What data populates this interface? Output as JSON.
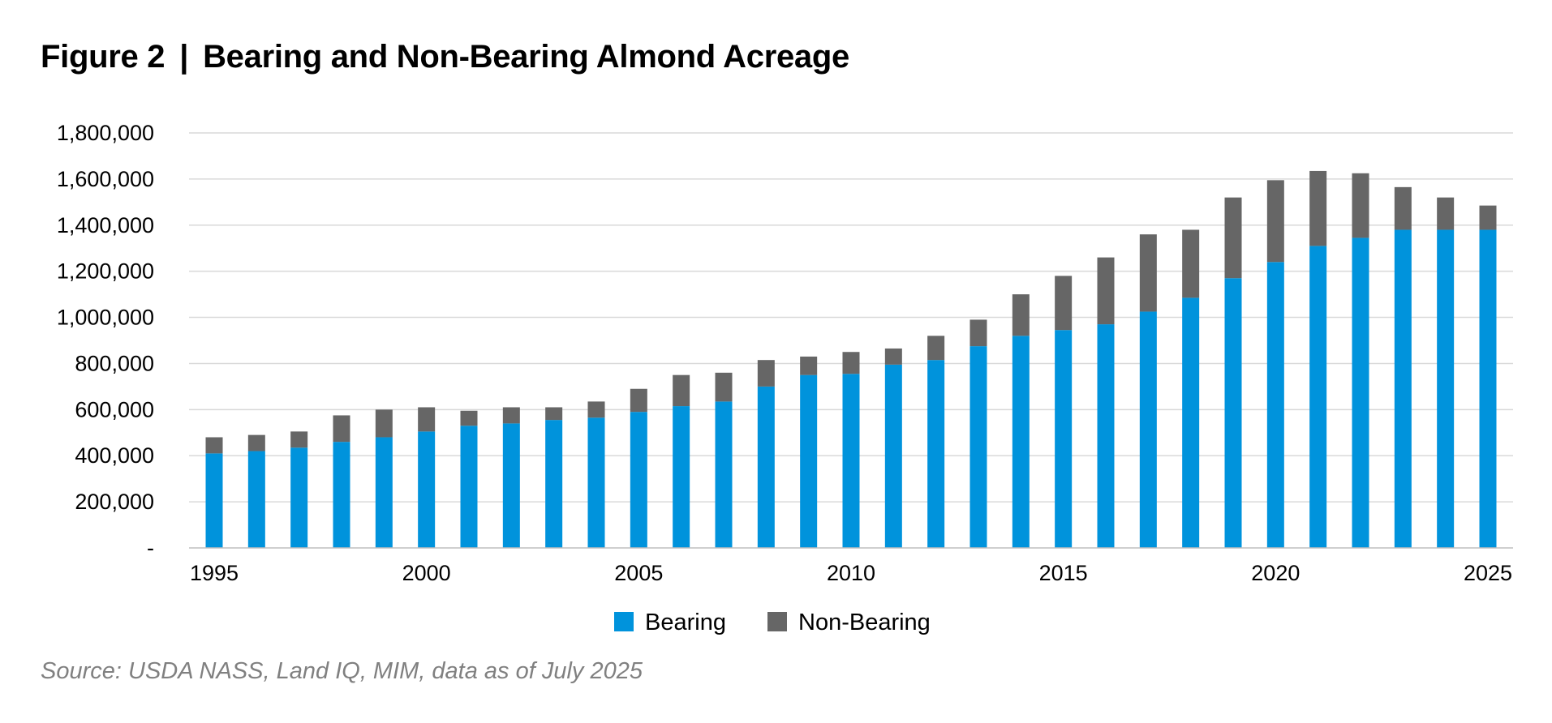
{
  "figure": {
    "label": "Figure 2",
    "separator": "|",
    "title": "Bearing and Non-Bearing Almond Acreage",
    "source": "Source: USDA NASS, Land IQ, MIM, data as of July 2025"
  },
  "colors": {
    "bearing": "#0093dc",
    "non_bearing": "#666666",
    "grid": "#d9d9d9",
    "axis": "#bfbfbf"
  },
  "chart_data": {
    "type": "bar",
    "stacked": true,
    "title": "Bearing and Non-Bearing Almond Acreage",
    "xlabel": "",
    "ylabel": "",
    "ylim": [
      0,
      1800000
    ],
    "yticks": [
      0,
      200000,
      400000,
      600000,
      800000,
      1000000,
      1200000,
      1400000,
      1600000,
      1800000
    ],
    "ytick_labels": [
      "-",
      "200,000",
      "400,000",
      "600,000",
      "800,000",
      "1,000,000",
      "1,200,000",
      "1,400,000",
      "1,600,000",
      "1,800,000"
    ],
    "categories": [
      1995,
      1996,
      1997,
      1998,
      1999,
      2000,
      2001,
      2002,
      2003,
      2004,
      2005,
      2006,
      2007,
      2008,
      2009,
      2010,
      2011,
      2012,
      2013,
      2014,
      2015,
      2016,
      2017,
      2018,
      2019,
      2020,
      2021,
      2022,
      2023,
      2024,
      2025
    ],
    "xtick_labels": [
      "1995",
      "2000",
      "2005",
      "2010",
      "2015",
      "2020",
      "2025"
    ],
    "legend_position": "bottom-center",
    "grid": true,
    "series": [
      {
        "name": "Bearing",
        "values": [
          410000,
          420000,
          435000,
          460000,
          480000,
          505000,
          530000,
          540000,
          555000,
          565000,
          590000,
          615000,
          635000,
          700000,
          750000,
          755000,
          795000,
          815000,
          875000,
          920000,
          945000,
          970000,
          1025000,
          1085000,
          1170000,
          1240000,
          1310000,
          1345000,
          1380000,
          1380000,
          1380000
        ]
      },
      {
        "name": "Non-Bearing",
        "values": [
          70000,
          70000,
          70000,
          115000,
          120000,
          105000,
          65000,
          70000,
          55000,
          70000,
          100000,
          135000,
          125000,
          115000,
          80000,
          95000,
          70000,
          105000,
          115000,
          180000,
          235000,
          290000,
          335000,
          295000,
          350000,
          355000,
          325000,
          280000,
          185000,
          140000,
          105000
        ]
      }
    ]
  }
}
